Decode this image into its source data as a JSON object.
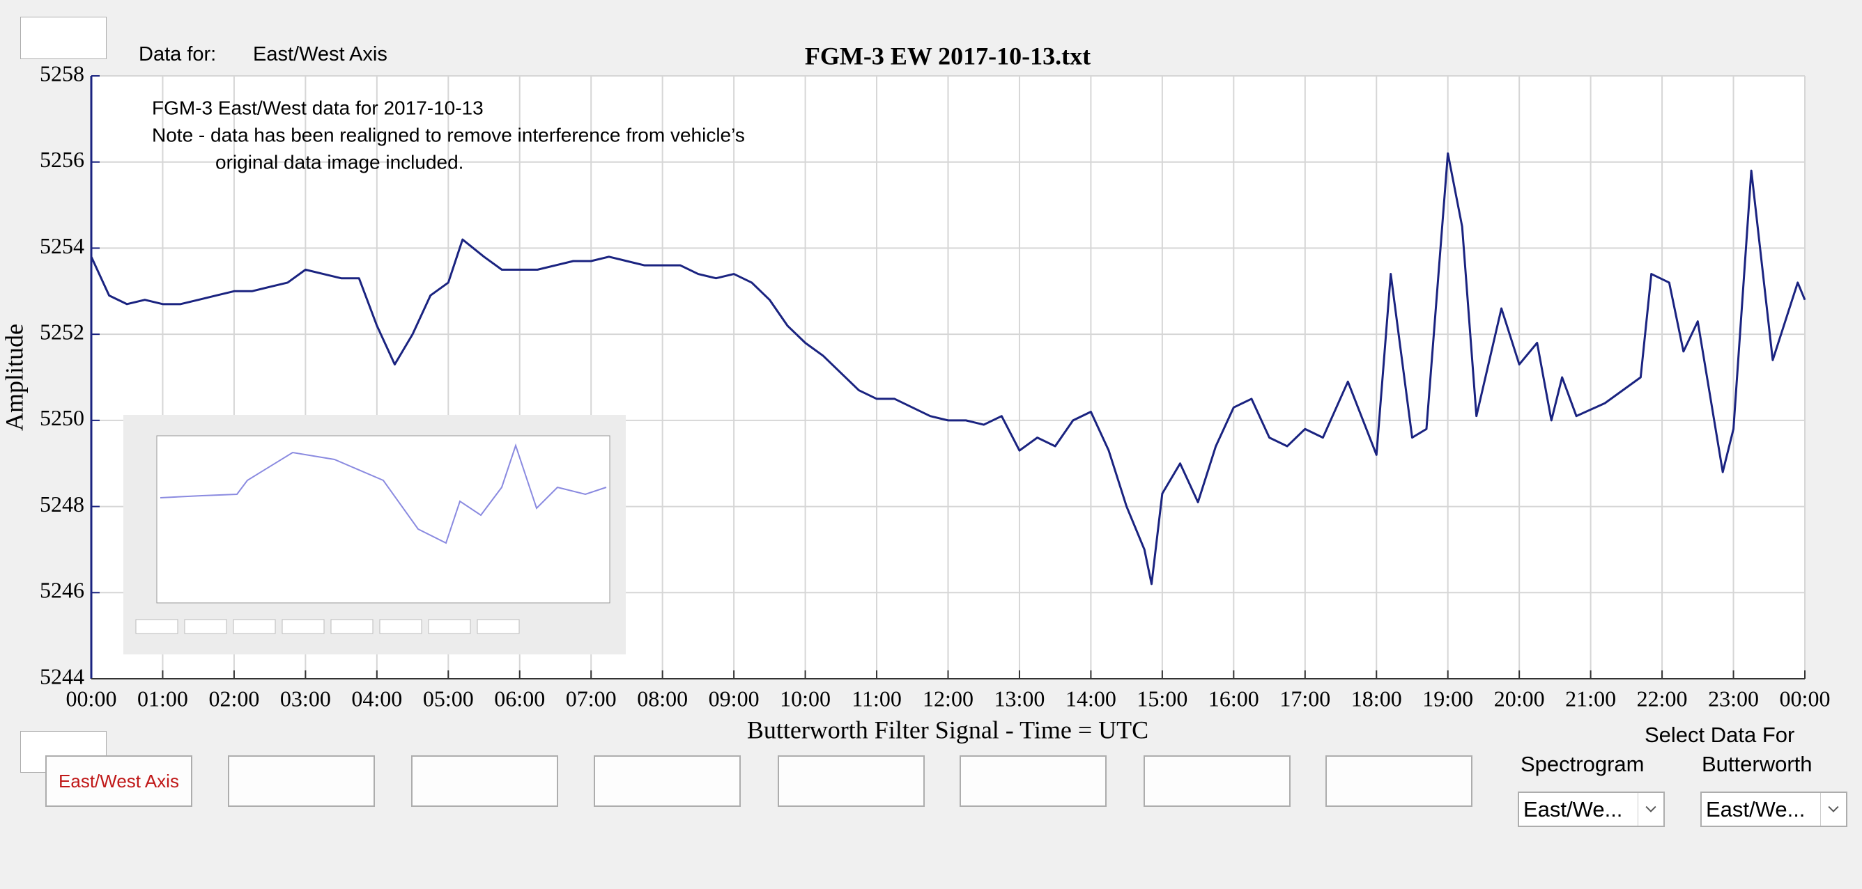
{
  "header": {
    "data_for_label": "Data for:",
    "data_for_value": "East/West Axis"
  },
  "chart_data": {
    "type": "line",
    "title": "FGM-3 EW 2017-10-13.txt",
    "xlabel": "Butterworth Filter Signal - Time = UTC",
    "ylabel": "Amplitude",
    "annotations": [
      "FGM-3 East/West data for 2017-10-13",
      "Note - data has been realigned to remove interference from vehicle’s",
      "original data image included."
    ],
    "x": [
      0,
      0.25,
      0.5,
      0.75,
      1,
      1.25,
      1.5,
      1.75,
      2,
      2.25,
      2.5,
      2.75,
      3,
      3.25,
      3.5,
      3.75,
      4,
      4.25,
      4.5,
      4.75,
      5,
      5.2,
      5.5,
      5.75,
      6,
      6.25,
      6.5,
      6.75,
      7,
      7.25,
      7.5,
      7.75,
      8,
      8.25,
      8.5,
      8.75,
      9,
      9.25,
      9.5,
      9.75,
      10,
      10.25,
      10.5,
      10.75,
      11,
      11.25,
      11.5,
      11.75,
      12,
      12.25,
      12.5,
      12.75,
      13,
      13.25,
      13.5,
      13.75,
      14,
      14.25,
      14.5,
      14.75,
      14.85,
      15,
      15.25,
      15.5,
      15.75,
      16,
      16.25,
      16.5,
      16.75,
      17,
      17.25,
      17.6,
      18,
      18.2,
      18.5,
      18.7,
      19,
      19.2,
      19.4,
      19.75,
      20,
      20.25,
      20.45,
      20.6,
      20.8,
      21.2,
      21.7,
      21.85,
      22.1,
      22.3,
      22.5,
      22.85,
      23,
      23.25,
      23.55,
      23.9,
      24
    ],
    "series": [
      {
        "color": "#1a2380",
        "values": [
          5253.8,
          5252.9,
          5252.7,
          5252.8,
          5252.7,
          5252.7,
          5252.8,
          5252.9,
          5253.0,
          5253.0,
          5253.1,
          5253.2,
          5253.5,
          5253.4,
          5253.3,
          5253.3,
          5252.2,
          5251.3,
          5252.0,
          5252.9,
          5253.2,
          5254.2,
          5253.8,
          5253.5,
          5253.5,
          5253.5,
          5253.6,
          5253.7,
          5253.7,
          5253.8,
          5253.7,
          5253.6,
          5253.6,
          5253.6,
          5253.4,
          5253.3,
          5253.4,
          5253.2,
          5252.8,
          5252.2,
          5251.8,
          5251.5,
          5251.1,
          5250.7,
          5250.5,
          5250.5,
          5250.3,
          5250.1,
          5250.0,
          5250.0,
          5249.9,
          5250.1,
          5249.3,
          5249.6,
          5249.4,
          5250.0,
          5250.2,
          5249.3,
          5248.0,
          5247.0,
          5246.2,
          5248.3,
          5249.0,
          5248.1,
          5249.4,
          5250.3,
          5250.5,
          5249.6,
          5249.4,
          5249.8,
          5249.6,
          5250.9,
          5249.2,
          5253.4,
          5249.6,
          5249.8,
          5256.2,
          5254.5,
          5250.1,
          5252.6,
          5251.3,
          5251.8,
          5250.0,
          5251.0,
          5250.1,
          5250.4,
          5251.0,
          5253.4,
          5253.2,
          5251.6,
          5252.3,
          5248.8,
          5249.8,
          5255.8,
          5251.4,
          5253.2,
          5252.8
        ]
      }
    ],
    "xlim": [
      0,
      24
    ],
    "xticks": [
      {
        "value": 0,
        "label": "00:00"
      },
      {
        "value": 1,
        "label": "01:00"
      },
      {
        "value": 2,
        "label": "02:00"
      },
      {
        "value": 3,
        "label": "03:00"
      },
      {
        "value": 4,
        "label": "04:00"
      },
      {
        "value": 5,
        "label": "05:00"
      },
      {
        "value": 6,
        "label": "06:00"
      },
      {
        "value": 7,
        "label": "07:00"
      },
      {
        "value": 8,
        "label": "08:00"
      },
      {
        "value": 9,
        "label": "09:00"
      },
      {
        "value": 10,
        "label": "10:00"
      },
      {
        "value": 11,
        "label": "11:00"
      },
      {
        "value": 12,
        "label": "12:00"
      },
      {
        "value": 13,
        "label": "13:00"
      },
      {
        "value": 14,
        "label": "14:00"
      },
      {
        "value": 15,
        "label": "15:00"
      },
      {
        "value": 16,
        "label": "16:00"
      },
      {
        "value": 17,
        "label": "17:00"
      },
      {
        "value": 18,
        "label": "18:00"
      },
      {
        "value": 19,
        "label": "19:00"
      },
      {
        "value": 20,
        "label": "20:00"
      },
      {
        "value": 21,
        "label": "21:00"
      },
      {
        "value": 22,
        "label": "22:00"
      },
      {
        "value": 23,
        "label": "23:00"
      },
      {
        "value": 24,
        "label": "00:00"
      }
    ],
    "ylim": [
      5244,
      5258
    ],
    "yticks": [
      5244,
      5246,
      5248,
      5250,
      5252,
      5254,
      5256,
      5258
    ],
    "grid": true
  },
  "controls": {
    "buttons": [
      "East/West Axis"
    ],
    "select_label": "Select Data For",
    "dropdowns": [
      {
        "label": "Spectrogram",
        "value": "East/We..."
      },
      {
        "label": "Butterworth",
        "value": "East/We..."
      }
    ]
  }
}
